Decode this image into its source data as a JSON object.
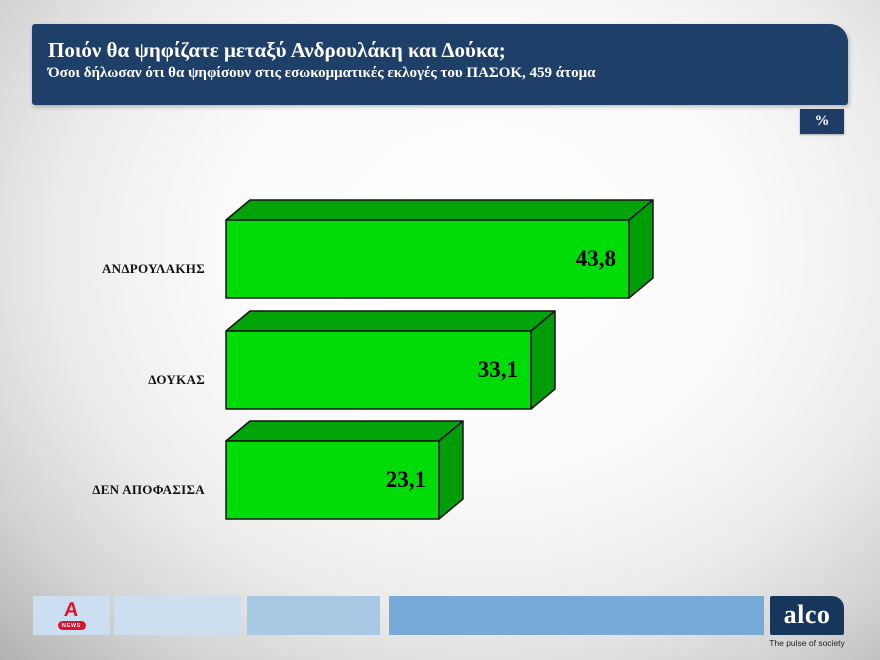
{
  "chart_data": {
    "type": "bar",
    "orientation": "horizontal",
    "title": "Ποιόν θα ψηφίζατε μεταξύ Ανδρουλάκη και Δούκα;",
    "subtitle": "Όσοι δήλωσαν ότι θα ψηφίσουν στις εσωκομματικές εκλογές του ΠΑΣΟΚ, 459 άτομα",
    "unit": "%",
    "categories": [
      "ΑΝΔΡΟΥΛΑΚΗΣ",
      "ΔΟΥΚΑΣ",
      "ΔΕΝ ΑΠΟΦΑΣΙΣΑ"
    ],
    "values": [
      43.8,
      33.1,
      23.1
    ],
    "value_labels": [
      "43,8",
      "33,1",
      "23,1"
    ],
    "xlim": [
      0,
      47
    ],
    "grid": false,
    "legend": false,
    "bar_style": "3d-box",
    "colors": {
      "bar_front": "#00dc08",
      "bar_top": "#02a409",
      "bar_side": "#019d09",
      "bar_outline": "#151515",
      "value_text": "#000000"
    }
  },
  "header": {
    "bg": "#1e3f68",
    "text_color": "#ffffff"
  },
  "unit_badge": "%",
  "footer": {
    "alpha_news_label": "NEWS",
    "alpha_a_glyph": "A",
    "alco_label": "alco",
    "alco_tagline": "The pulse of society",
    "colors": {
      "strip_light_blue": "#cbdff0",
      "strip_mid_blue": "#a9c8e3",
      "strip_steel_blue": "#78aad9",
      "alco_bg": "#17365c",
      "alpha_red": "#d8142f"
    }
  },
  "background": {
    "center": "#ffffff",
    "edge_silver": "#b2b2b2"
  }
}
